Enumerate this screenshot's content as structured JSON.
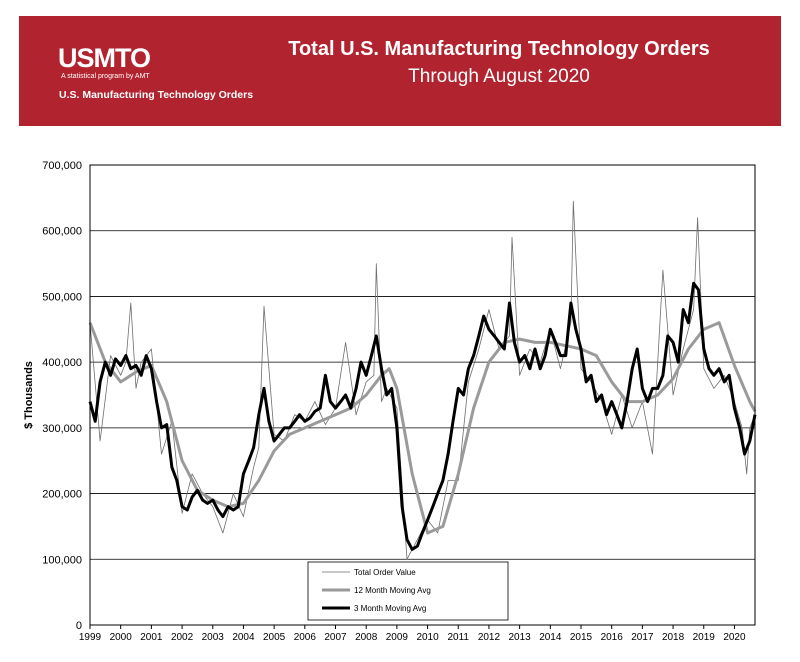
{
  "header": {
    "logo_text": "USMTO",
    "logo_tagline": "A statistical program by AMT",
    "brand_line": "U.S. Manufacturing Technology Orders",
    "title": "Total U.S. Manufacturing Technology Orders",
    "subtitle": "Through August 2020",
    "bg_color": "#b1232f"
  },
  "chart_data": {
    "type": "line",
    "title": "Total U.S. Manufacturing Technology Orders",
    "subtitle": "Through August 2020",
    "xlabel": "",
    "ylabel": "$ Thousands",
    "ylim": [
      0,
      700000
    ],
    "xlim": [
      1999.0,
      2020.67
    ],
    "grid": true,
    "y_ticks": [
      0,
      100000,
      200000,
      300000,
      400000,
      500000,
      600000,
      700000
    ],
    "y_tick_labels": [
      "0",
      "100,000",
      "200,000",
      "300,000",
      "400,000",
      "500,000",
      "600,000",
      "700,000"
    ],
    "x_ticks": [
      1999,
      2000,
      2001,
      2002,
      2003,
      2004,
      2005,
      2006,
      2007,
      2008,
      2009,
      2010,
      2011,
      2012,
      2013,
      2014,
      2015,
      2016,
      2017,
      2018,
      2019,
      2020
    ],
    "x_tick_labels": [
      "1999",
      "2000",
      "2001",
      "2002",
      "2003",
      "2004",
      "2005",
      "2006",
      "2007",
      "2008",
      "2009",
      "2010",
      "2011",
      "2012",
      "2013",
      "2014",
      "2015",
      "2016",
      "2017",
      "2018",
      "2019",
      "2020"
    ],
    "legend_position": "bottom-center",
    "series": [
      {
        "name": "Total Order Value",
        "color": "#6e6e6e",
        "width": 0.8,
        "x": [
          1999.0,
          1999.33,
          1999.67,
          2000.0,
          2000.17,
          2000.33,
          2000.5,
          2000.67,
          2001.0,
          2001.33,
          2001.67,
          2002.0,
          2002.33,
          2002.67,
          2003.0,
          2003.33,
          2003.67,
          2004.0,
          2004.33,
          2004.5,
          2004.67,
          2005.0,
          2005.33,
          2005.67,
          2006.0,
          2006.33,
          2006.67,
          2007.0,
          2007.33,
          2007.67,
          2008.0,
          2008.25,
          2008.33,
          2008.5,
          2008.67,
          2009.0,
          2009.33,
          2009.67,
          2010.0,
          2010.33,
          2010.67,
          2011.0,
          2011.33,
          2011.67,
          2012.0,
          2012.33,
          2012.67,
          2012.75,
          2013.0,
          2013.33,
          2013.67,
          2014.0,
          2014.33,
          2014.67,
          2014.75,
          2015.0,
          2015.33,
          2015.67,
          2016.0,
          2016.33,
          2016.67,
          2017.0,
          2017.33,
          2017.67,
          2018.0,
          2018.33,
          2018.67,
          2018.8,
          2019.0,
          2019.33,
          2019.67,
          2020.0,
          2020.25,
          2020.4,
          2020.5,
          2020.67
        ],
        "values": [
          460000,
          280000,
          410000,
          380000,
          400000,
          490000,
          360000,
          400000,
          420000,
          260000,
          310000,
          170000,
          230000,
          200000,
          180000,
          140000,
          200000,
          165000,
          240000,
          270000,
          485000,
          290000,
          280000,
          320000,
          310000,
          340000,
          305000,
          330000,
          430000,
          320000,
          370000,
          380000,
          550000,
          340000,
          360000,
          330000,
          100000,
          130000,
          160000,
          140000,
          220000,
          220000,
          370000,
          420000,
          480000,
          420000,
          440000,
          590000,
          380000,
          420000,
          400000,
          450000,
          390000,
          460000,
          645000,
          390000,
          370000,
          340000,
          290000,
          350000,
          300000,
          340000,
          260000,
          540000,
          350000,
          420000,
          480000,
          620000,
          390000,
          360000,
          380000,
          340000,
          300000,
          230000,
          300000,
          320000
        ]
      },
      {
        "name": "12 Month Moving Avg",
        "color": "#9a9a9a",
        "width": 3,
        "x": [
          1999.0,
          1999.5,
          2000.0,
          2000.5,
          2001.0,
          2001.5,
          2002.0,
          2002.5,
          2003.0,
          2003.5,
          2004.0,
          2004.5,
          2005.0,
          2005.5,
          2006.0,
          2006.5,
          2007.0,
          2007.5,
          2008.0,
          2008.5,
          2008.75,
          2009.0,
          2009.5,
          2010.0,
          2010.5,
          2011.0,
          2011.5,
          2012.0,
          2012.5,
          2013.0,
          2013.5,
          2014.0,
          2014.5,
          2015.0,
          2015.5,
          2016.0,
          2016.5,
          2017.0,
          2017.5,
          2018.0,
          2018.5,
          2019.0,
          2019.5,
          2020.0,
          2020.5,
          2020.67
        ],
        "values": [
          460000,
          400000,
          370000,
          385000,
          395000,
          340000,
          250000,
          205000,
          190000,
          180000,
          185000,
          220000,
          265000,
          290000,
          300000,
          310000,
          320000,
          330000,
          350000,
          380000,
          390000,
          360000,
          230000,
          140000,
          150000,
          230000,
          330000,
          400000,
          430000,
          435000,
          430000,
          430000,
          425000,
          420000,
          410000,
          370000,
          340000,
          340000,
          350000,
          375000,
          420000,
          450000,
          460000,
          395000,
          340000,
          325000
        ]
      },
      {
        "name": "3 Month Moving Avg",
        "color": "#000000",
        "width": 3,
        "x": [
          1999.0,
          1999.17,
          1999.33,
          1999.5,
          1999.67,
          1999.83,
          2000.0,
          2000.17,
          2000.33,
          2000.5,
          2000.67,
          2000.83,
          2001.0,
          2001.17,
          2001.33,
          2001.5,
          2001.67,
          2001.83,
          2002.0,
          2002.17,
          2002.33,
          2002.5,
          2002.67,
          2002.83,
          2003.0,
          2003.17,
          2003.33,
          2003.5,
          2003.67,
          2003.83,
          2004.0,
          2004.17,
          2004.33,
          2004.5,
          2004.67,
          2004.83,
          2005.0,
          2005.17,
          2005.33,
          2005.5,
          2005.67,
          2005.83,
          2006.0,
          2006.17,
          2006.33,
          2006.5,
          2006.67,
          2006.83,
          2007.0,
          2007.17,
          2007.33,
          2007.5,
          2007.67,
          2007.83,
          2008.0,
          2008.17,
          2008.33,
          2008.5,
          2008.67,
          2008.83,
          2009.0,
          2009.17,
          2009.33,
          2009.5,
          2009.67,
          2009.83,
          2010.0,
          2010.17,
          2010.33,
          2010.5,
          2010.67,
          2010.83,
          2011.0,
          2011.17,
          2011.33,
          2011.5,
          2011.67,
          2011.83,
          2012.0,
          2012.17,
          2012.33,
          2012.5,
          2012.67,
          2012.83,
          2013.0,
          2013.17,
          2013.33,
          2013.5,
          2013.67,
          2013.83,
          2014.0,
          2014.17,
          2014.33,
          2014.5,
          2014.67,
          2014.83,
          2015.0,
          2015.17,
          2015.33,
          2015.5,
          2015.67,
          2015.83,
          2016.0,
          2016.17,
          2016.33,
          2016.5,
          2016.67,
          2016.83,
          2017.0,
          2017.17,
          2017.33,
          2017.5,
          2017.67,
          2017.83,
          2018.0,
          2018.17,
          2018.33,
          2018.5,
          2018.67,
          2018.83,
          2019.0,
          2019.17,
          2019.33,
          2019.5,
          2019.67,
          2019.83,
          2020.0,
          2020.17,
          2020.33,
          2020.5,
          2020.67
        ],
        "values": [
          340000,
          310000,
          370000,
          400000,
          380000,
          405000,
          395000,
          410000,
          390000,
          395000,
          380000,
          410000,
          390000,
          340000,
          300000,
          305000,
          240000,
          220000,
          180000,
          175000,
          195000,
          205000,
          190000,
          185000,
          190000,
          175000,
          165000,
          180000,
          175000,
          180000,
          230000,
          250000,
          270000,
          320000,
          360000,
          310000,
          280000,
          290000,
          300000,
          300000,
          310000,
          320000,
          310000,
          315000,
          325000,
          330000,
          380000,
          340000,
          330000,
          340000,
          350000,
          330000,
          360000,
          400000,
          380000,
          410000,
          440000,
          390000,
          350000,
          360000,
          300000,
          180000,
          130000,
          115000,
          120000,
          140000,
          160000,
          180000,
          200000,
          220000,
          260000,
          310000,
          360000,
          350000,
          390000,
          410000,
          440000,
          470000,
          450000,
          440000,
          430000,
          420000,
          490000,
          430000,
          400000,
          410000,
          390000,
          420000,
          390000,
          410000,
          450000,
          430000,
          410000,
          410000,
          490000,
          450000,
          420000,
          370000,
          380000,
          340000,
          350000,
          320000,
          340000,
          320000,
          300000,
          340000,
          390000,
          420000,
          360000,
          340000,
          360000,
          360000,
          380000,
          440000,
          430000,
          400000,
          480000,
          460000,
          520000,
          510000,
          420000,
          390000,
          380000,
          390000,
          370000,
          380000,
          330000,
          300000,
          260000,
          280000,
          320000
        ]
      }
    ]
  }
}
